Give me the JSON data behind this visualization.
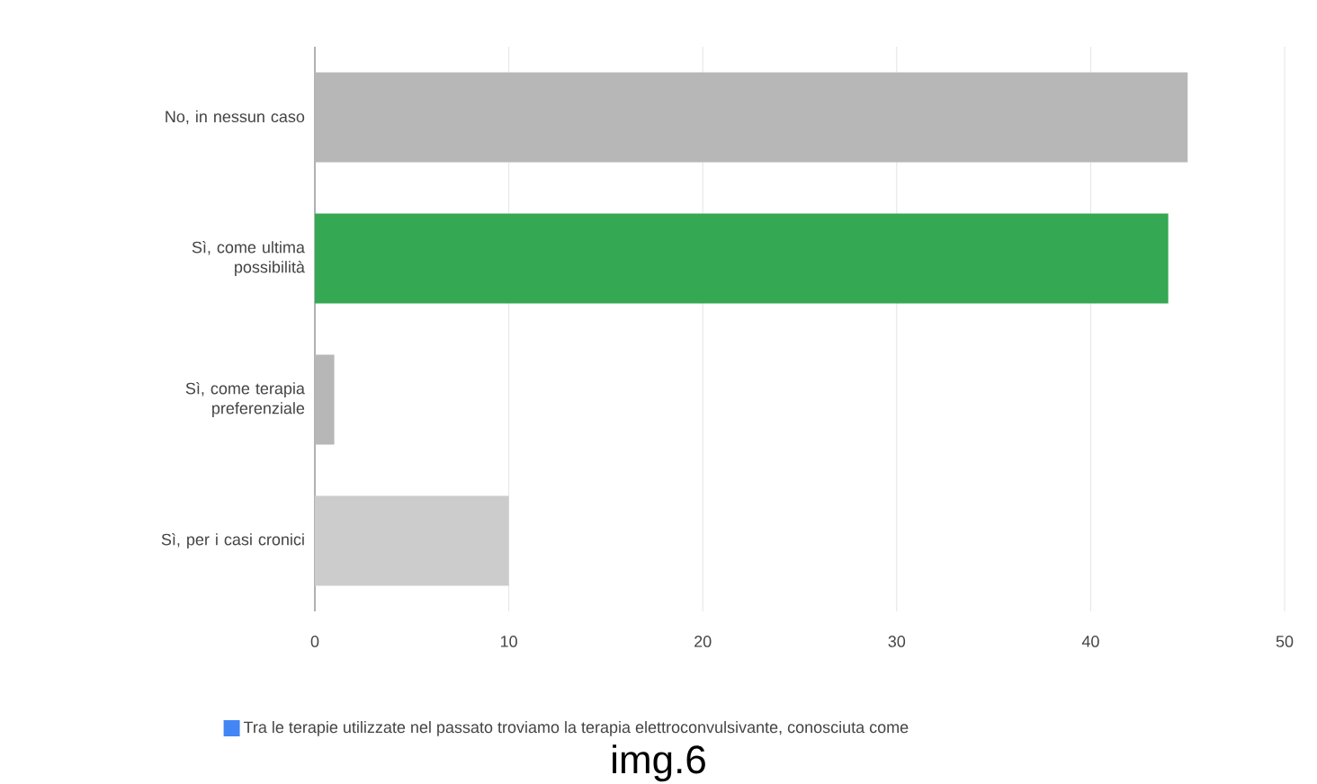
{
  "chart_data": {
    "type": "bar",
    "orientation": "horizontal",
    "categories": [
      "No, in nessun caso",
      "Sì, come ultima possibilità",
      "Sì, come terapia preferenziale",
      "Sì, per i casi cronici"
    ],
    "series": [
      {
        "name": "Tra le terapie utilizzate nel passato troviamo la terapia elettroconvulsivante, conosciuta come",
        "color": "#4285f4",
        "colors": [
          "#b7b7b7",
          "#34a853",
          "#b7b7b7",
          "#cccccc"
        ],
        "values": [
          45,
          44,
          1,
          10
        ]
      }
    ],
    "xlim": [
      0,
      50
    ],
    "xticks": [
      0,
      10,
      20,
      30,
      40,
      50
    ],
    "grid": "x",
    "legend": "bottom",
    "annotations": [
      "img.6"
    ]
  }
}
